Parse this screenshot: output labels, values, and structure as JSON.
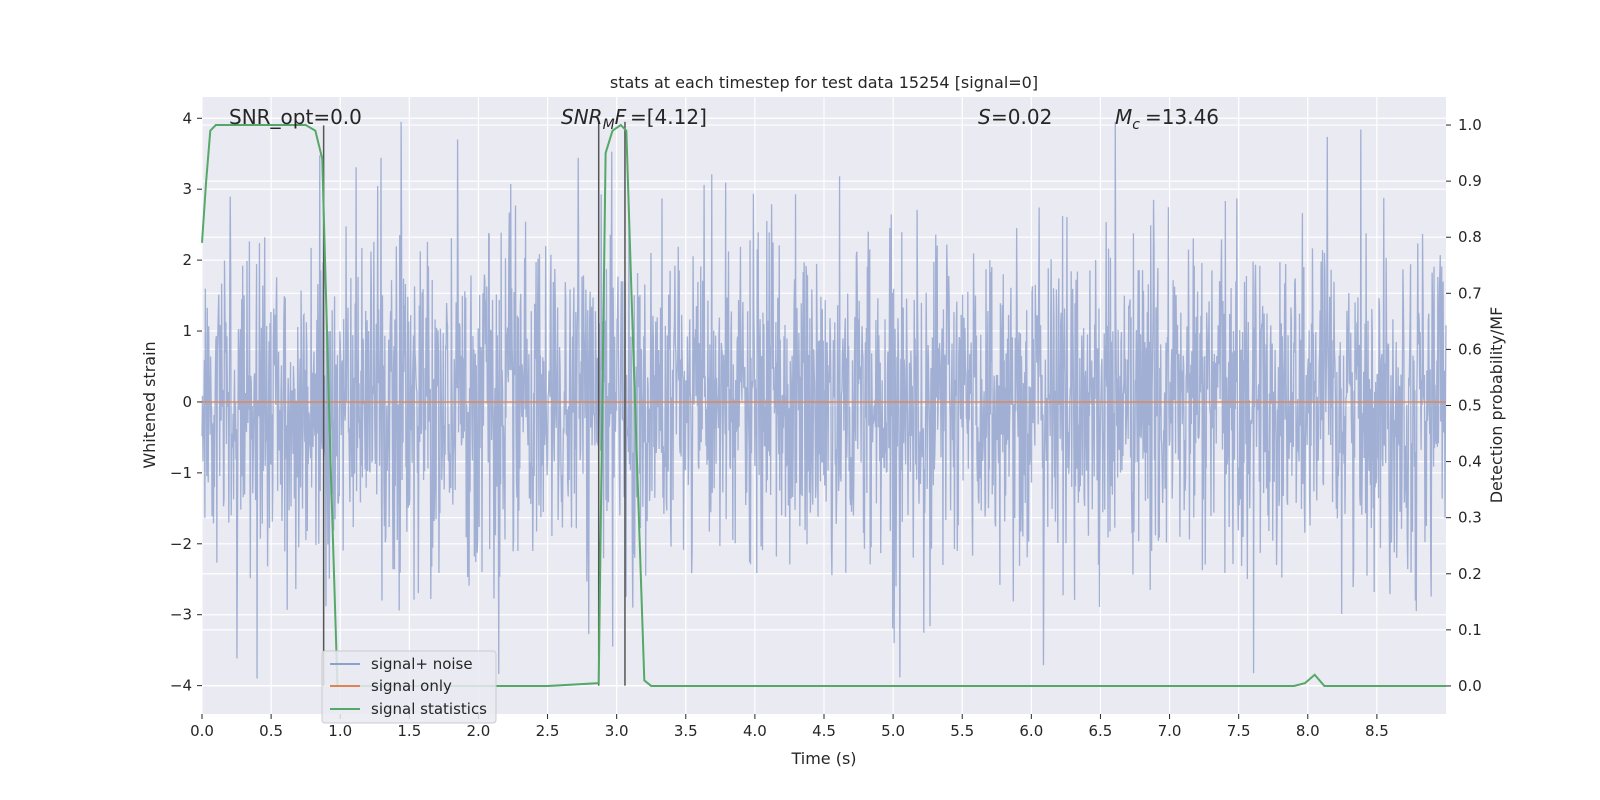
{
  "chart_data": {
    "type": "line",
    "title": "stats at each timestep for test data 15254 [signal=0]",
    "xlabel": "Time (s)",
    "ylabel": "Whitened strain",
    "y2label": "Detection probability/MF",
    "xlim": [
      0.0,
      9.0
    ],
    "ylim": [
      -4.4,
      4.3
    ],
    "y2lim": [
      -0.05,
      1.05
    ],
    "x_ticks": [
      "0.0",
      "0.5",
      "1.0",
      "1.5",
      "2.0",
      "2.5",
      "3.0",
      "3.5",
      "4.0",
      "4.5",
      "5.0",
      "5.5",
      "6.0",
      "6.5",
      "7.0",
      "7.5",
      "8.0",
      "8.5"
    ],
    "y_ticks": [
      "−4",
      "−3",
      "−2",
      "−1",
      "0",
      "1",
      "2",
      "3",
      "4"
    ],
    "y2_ticks": [
      "0.0",
      "0.1",
      "0.2",
      "0.3",
      "0.4",
      "0.5",
      "0.6",
      "0.7",
      "0.8",
      "0.9",
      "1.0"
    ],
    "grid": true,
    "legend_position": "lower-left",
    "annotations": {
      "snr_opt": "SNR_opt=0.0",
      "snr_mf": "=[4.12]",
      "s": "=0.02",
      "mc": "=13.46"
    },
    "series": [
      {
        "name": "signal+ noise",
        "color": "#8da0cb",
        "description_values": "whitened strain noise, values between about -3.9 and 4.0, sampled continuously over 0-9 s"
      },
      {
        "name": "signal only",
        "color": "#dd8452",
        "values_constant": 0.0
      },
      {
        "name": "signal statistics",
        "color": "#55a868",
        "axis": "right",
        "x": [
          0.0,
          0.03,
          0.06,
          0.1,
          0.2,
          0.4,
          0.6,
          0.75,
          0.82,
          0.87,
          0.93,
          0.98,
          1.2,
          2.0,
          2.5,
          2.87,
          2.92,
          2.97,
          3.03,
          3.07,
          3.12,
          3.2,
          3.25,
          3.4,
          4.0,
          5.0,
          6.0,
          7.0,
          7.9,
          7.98,
          8.05,
          8.12,
          8.3,
          9.0
        ],
        "y": [
          0.79,
          0.9,
          0.99,
          1.0,
          1.0,
          1.0,
          1.0,
          1.0,
          0.99,
          0.94,
          0.4,
          0.0,
          0.0,
          0.0,
          0.0,
          0.005,
          0.95,
          0.99,
          1.0,
          0.99,
          0.6,
          0.01,
          0.0,
          0.0,
          0.0,
          0.0,
          0.0,
          0.0,
          0.0,
          0.005,
          0.02,
          0.0,
          0.0,
          0.0
        ]
      }
    ],
    "vertical_markers": [
      0.88,
      2.87,
      3.06
    ]
  },
  "colors": {
    "axes_bg": "#eaeaf2",
    "grid": "#ffffff",
    "marker": "#555555"
  }
}
